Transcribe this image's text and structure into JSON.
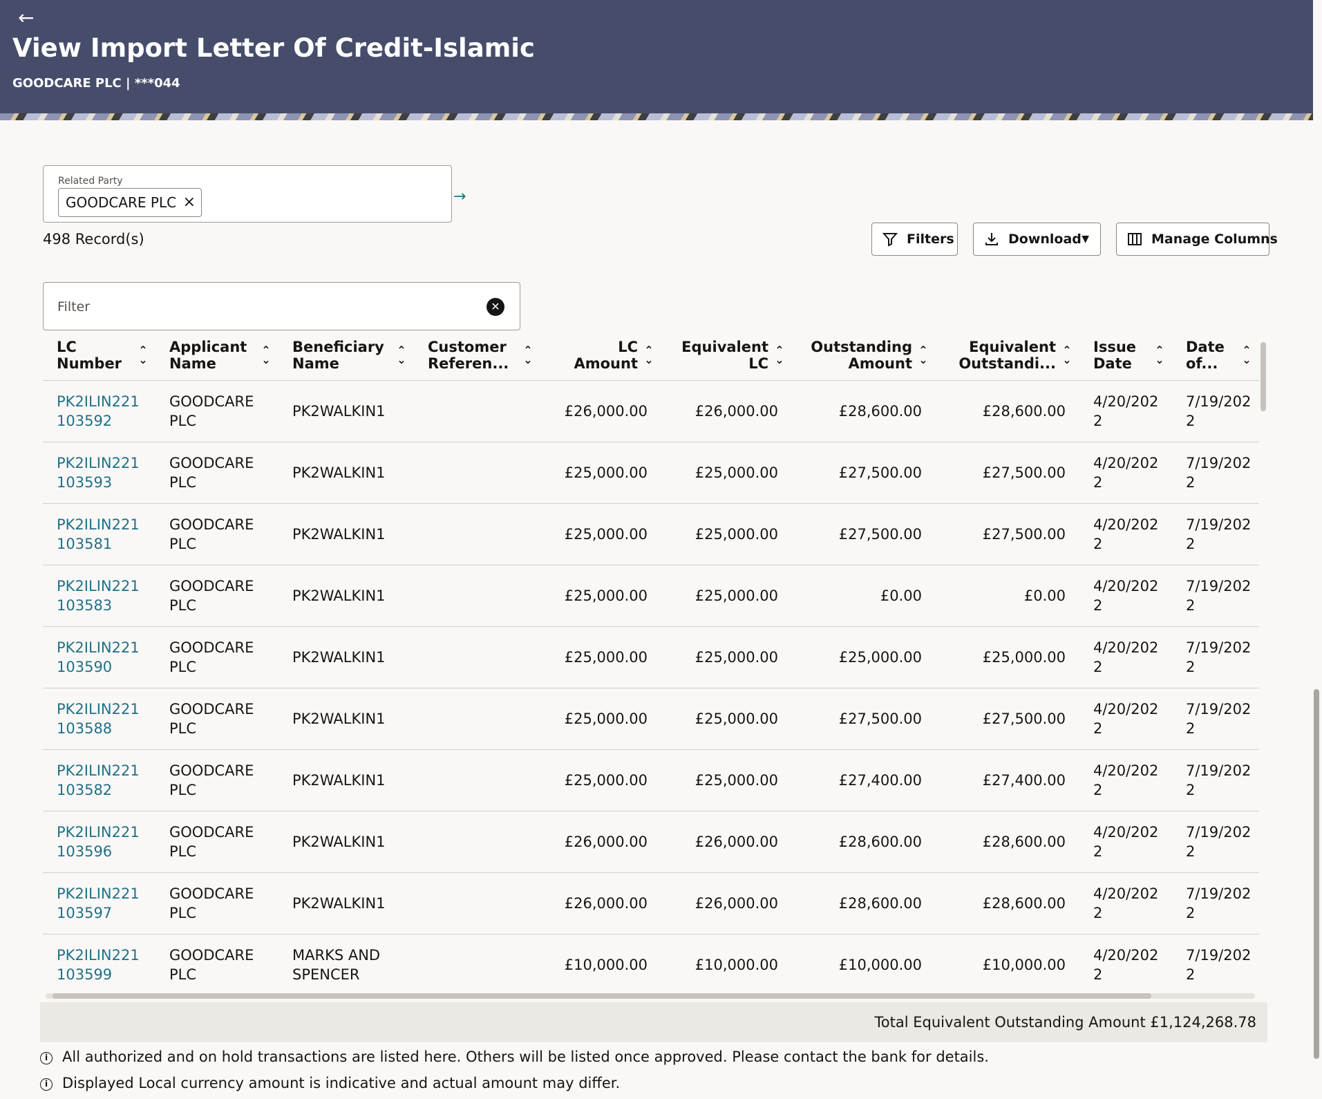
{
  "header": {
    "back_icon": "←",
    "title": "View Import Letter Of Credit-Islamic",
    "subtitle": "GOODCARE PLC | ***044"
  },
  "related_party": {
    "label": "Related Party",
    "chip": "GOODCARE PLC",
    "go_icon": "→"
  },
  "records_label": "498 Record(s)",
  "toolbar": {
    "filters_label": "Filters",
    "download_label": "Download",
    "manage_columns_label": "Manage Columns"
  },
  "filter": {
    "placeholder": "Filter",
    "clear_icon": "✕"
  },
  "table": {
    "sort_icon": "⌃⌄",
    "columns": [
      "LC Number",
      "Applicant Name",
      "Beneficiary Name",
      "Customer Referen...",
      "LC Amount",
      "Equivalent LC",
      "Outstanding Amount",
      "Equivalent Outstandi...",
      "Issue Date",
      "Date of..."
    ],
    "rows": [
      {
        "lc_number": "PK2ILIN221103592",
        "applicant": "GOODCARE PLC",
        "beneficiary": "PK2WALKIN1",
        "customer_ref": "",
        "lc_amount": "£26,000.00",
        "equivalent_lc": "£26,000.00",
        "outstanding": "£28,600.00",
        "equivalent_outstanding": "£28,600.00",
        "issue_date": "4/20/2022",
        "date_of": "7/19/2022"
      },
      {
        "lc_number": "PK2ILIN221103593",
        "applicant": "GOODCARE PLC",
        "beneficiary": "PK2WALKIN1",
        "customer_ref": "",
        "lc_amount": "£25,000.00",
        "equivalent_lc": "£25,000.00",
        "outstanding": "£27,500.00",
        "equivalent_outstanding": "£27,500.00",
        "issue_date": "4/20/2022",
        "date_of": "7/19/2022"
      },
      {
        "lc_number": "PK2ILIN221103581",
        "applicant": "GOODCARE PLC",
        "beneficiary": "PK2WALKIN1",
        "customer_ref": "",
        "lc_amount": "£25,000.00",
        "equivalent_lc": "£25,000.00",
        "outstanding": "£27,500.00",
        "equivalent_outstanding": "£27,500.00",
        "issue_date": "4/20/2022",
        "date_of": "7/19/2022"
      },
      {
        "lc_number": "PK2ILIN221103583",
        "applicant": "GOODCARE PLC",
        "beneficiary": "PK2WALKIN1",
        "customer_ref": "",
        "lc_amount": "£25,000.00",
        "equivalent_lc": "£25,000.00",
        "outstanding": "£0.00",
        "equivalent_outstanding": "£0.00",
        "issue_date": "4/20/2022",
        "date_of": "7/19/2022"
      },
      {
        "lc_number": "PK2ILIN221103590",
        "applicant": "GOODCARE PLC",
        "beneficiary": "PK2WALKIN1",
        "customer_ref": "",
        "lc_amount": "£25,000.00",
        "equivalent_lc": "£25,000.00",
        "outstanding": "£25,000.00",
        "equivalent_outstanding": "£25,000.00",
        "issue_date": "4/20/2022",
        "date_of": "7/19/2022"
      },
      {
        "lc_number": "PK2ILIN221103588",
        "applicant": "GOODCARE PLC",
        "beneficiary": "PK2WALKIN1",
        "customer_ref": "",
        "lc_amount": "£25,000.00",
        "equivalent_lc": "£25,000.00",
        "outstanding": "£27,500.00",
        "equivalent_outstanding": "£27,500.00",
        "issue_date": "4/20/2022",
        "date_of": "7/19/2022"
      },
      {
        "lc_number": "PK2ILIN221103582",
        "applicant": "GOODCARE PLC",
        "beneficiary": "PK2WALKIN1",
        "customer_ref": "",
        "lc_amount": "£25,000.00",
        "equivalent_lc": "£25,000.00",
        "outstanding": "£27,400.00",
        "equivalent_outstanding": "£27,400.00",
        "issue_date": "4/20/2022",
        "date_of": "7/19/2022"
      },
      {
        "lc_number": "PK2ILIN221103596",
        "applicant": "GOODCARE PLC",
        "beneficiary": "PK2WALKIN1",
        "customer_ref": "",
        "lc_amount": "£26,000.00",
        "equivalent_lc": "£26,000.00",
        "outstanding": "£28,600.00",
        "equivalent_outstanding": "£28,600.00",
        "issue_date": "4/20/2022",
        "date_of": "7/19/2022"
      },
      {
        "lc_number": "PK2ILIN221103597",
        "applicant": "GOODCARE PLC",
        "beneficiary": "PK2WALKIN1",
        "customer_ref": "",
        "lc_amount": "£26,000.00",
        "equivalent_lc": "£26,000.00",
        "outstanding": "£28,600.00",
        "equivalent_outstanding": "£28,600.00",
        "issue_date": "4/20/2022",
        "date_of": "7/19/2022"
      },
      {
        "lc_number": "PK2ILIN221103599",
        "applicant": "GOODCARE PLC",
        "beneficiary": "MARKS AND SPENCER",
        "customer_ref": "",
        "lc_amount": "£10,000.00",
        "equivalent_lc": "£10,000.00",
        "outstanding": "£10,000.00",
        "equivalent_outstanding": "£10,000.00",
        "issue_date": "4/20/2022",
        "date_of": "7/19/2022"
      }
    ]
  },
  "total": {
    "text": "Total Equivalent Outstanding Amount £1,124,268.78"
  },
  "notes": [
    "All authorized and on hold transactions are listed here. Others will be listed once approved. Please contact the bank for details.",
    "Displayed Local currency amount is indicative and actual amount may differ."
  ],
  "colors": {
    "banner": "#464d6b",
    "link": "#227088"
  }
}
